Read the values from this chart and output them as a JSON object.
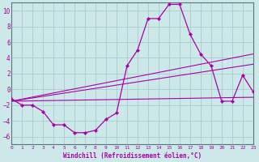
{
  "title": "",
  "xlabel": "Windchill (Refroidissement éolien,°C)",
  "bg_color": "#cce8e8",
  "grid_color": "#aacccc",
  "line_color": "#aa00aa",
  "spine_color": "#557777",
  "x_min": 0,
  "x_max": 23,
  "y_min": -7,
  "y_max": 11,
  "yticks": [
    -6,
    -4,
    -2,
    0,
    2,
    4,
    6,
    8,
    10
  ],
  "xticks": [
    0,
    1,
    2,
    3,
    4,
    5,
    6,
    7,
    8,
    9,
    10,
    11,
    12,
    13,
    14,
    15,
    16,
    17,
    18,
    19,
    20,
    21,
    22,
    23
  ],
  "line1_x": [
    0,
    1,
    2,
    3,
    4,
    5,
    6,
    7,
    8,
    9,
    10,
    11,
    12,
    13,
    14,
    15,
    16,
    17,
    18,
    19,
    20,
    21,
    22,
    23
  ],
  "line1_y": [
    -1.2,
    -2.0,
    -2.0,
    -2.8,
    -4.5,
    -4.5,
    -5.5,
    -5.5,
    -5.2,
    -3.8,
    -3.0,
    3.0,
    5.0,
    9.0,
    9.0,
    10.8,
    10.8,
    7.0,
    4.5,
    3.0,
    -1.5,
    -1.5,
    1.8,
    -0.3
  ],
  "line2_x": [
    0,
    23
  ],
  "line2_y": [
    -1.5,
    -1.0
  ],
  "line3_x": [
    0,
    23
  ],
  "line3_y": [
    -1.5,
    3.2
  ],
  "line4_x": [
    0,
    23
  ],
  "line4_y": [
    -1.5,
    4.5
  ]
}
